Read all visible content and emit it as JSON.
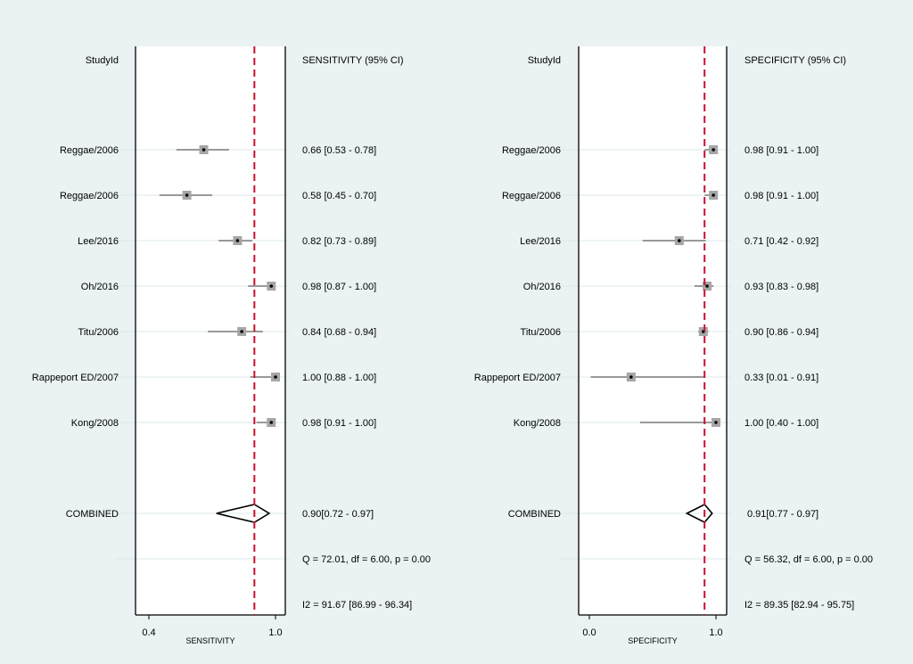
{
  "chart_data": [
    {
      "type": "forest",
      "header_study": "StudyId",
      "header_stat": "SENSITIVITY (95% CI)",
      "xlabel": "SENSITIVITY",
      "xlim": [
        0.4,
        1.0
      ],
      "xticks": [
        "0.4",
        "1.0"
      ],
      "reference_line": 0.9,
      "studies": [
        {
          "name": "Reggae/2006",
          "estimate": 0.66,
          "lower": 0.53,
          "upper": 0.78,
          "label": "0.66 [0.53 - 0.78]"
        },
        {
          "name": "Reggae/2006",
          "estimate": 0.58,
          "lower": 0.45,
          "upper": 0.7,
          "label": "0.58 [0.45 - 0.70]"
        },
        {
          "name": "Lee/2016",
          "estimate": 0.82,
          "lower": 0.73,
          "upper": 0.89,
          "label": "0.82 [0.73 - 0.89]"
        },
        {
          "name": "Oh/2016",
          "estimate": 0.98,
          "lower": 0.87,
          "upper": 1.0,
          "label": "0.98 [0.87 - 1.00]"
        },
        {
          "name": "Titu/2006",
          "estimate": 0.84,
          "lower": 0.68,
          "upper": 0.94,
          "label": "0.84 [0.68 - 0.94]"
        },
        {
          "name": "Rappeport ED/2007",
          "estimate": 1.0,
          "lower": 0.88,
          "upper": 1.0,
          "label": "1.00 [0.88 - 1.00]"
        },
        {
          "name": "Kong/2008",
          "estimate": 0.98,
          "lower": 0.91,
          "upper": 1.0,
          "label": "0.98 [0.91 - 1.00]"
        }
      ],
      "combined": {
        "name": "COMBINED",
        "estimate": 0.9,
        "lower": 0.72,
        "upper": 0.97,
        "label": "0.90[0.72 - 0.97]"
      },
      "heterogeneity_q": "Q = 72.01, df = 6.00, p =  0.00",
      "heterogeneity_i2": "I2 = 91.67 [86.99 - 96.34]",
      "colors": {
        "reference": "#c8102e",
        "box": "#a6a6a6",
        "gridline": "#dde8ea"
      }
    },
    {
      "type": "forest",
      "header_study": "StudyId",
      "header_stat": "SPECIFICITY (95% CI)",
      "xlabel": "SPECIFICITY",
      "xlim": [
        0.0,
        1.0
      ],
      "xticks": [
        "0.0",
        "1.0"
      ],
      "reference_line": 0.91,
      "studies": [
        {
          "name": "Reggae/2006",
          "estimate": 0.98,
          "lower": 0.91,
          "upper": 1.0,
          "label": "0.98 [0.91 - 1.00]"
        },
        {
          "name": "Reggae/2006",
          "estimate": 0.98,
          "lower": 0.91,
          "upper": 1.0,
          "label": "0.98 [0.91 - 1.00]"
        },
        {
          "name": "Lee/2016",
          "estimate": 0.71,
          "lower": 0.42,
          "upper": 0.92,
          "label": "0.71 [0.42 - 0.92]"
        },
        {
          "name": "Oh/2016",
          "estimate": 0.93,
          "lower": 0.83,
          "upper": 0.98,
          "label": "0.93 [0.83 - 0.98]"
        },
        {
          "name": "Titu/2006",
          "estimate": 0.9,
          "lower": 0.86,
          "upper": 0.94,
          "label": "0.90 [0.86 - 0.94]"
        },
        {
          "name": "Rappeport ED/2007",
          "estimate": 0.33,
          "lower": 0.01,
          "upper": 0.91,
          "label": "0.33 [0.01 - 0.91]"
        },
        {
          "name": "Kong/2008",
          "estimate": 1.0,
          "lower": 0.4,
          "upper": 1.0,
          "label": "1.00 [0.40 - 1.00]"
        }
      ],
      "combined": {
        "name": "COMBINED",
        "estimate": 0.91,
        "lower": 0.77,
        "upper": 0.97,
        "label": "0.91[0.77 - 0.97]"
      },
      "heterogeneity_q": "Q = 56.32, df = 6.00, p =  0.00",
      "heterogeneity_i2": "I2 = 89.35 [82.94 - 95.75]",
      "colors": {
        "reference": "#c8102e",
        "box": "#a6a6a6",
        "gridline": "#dde8ea"
      }
    }
  ]
}
